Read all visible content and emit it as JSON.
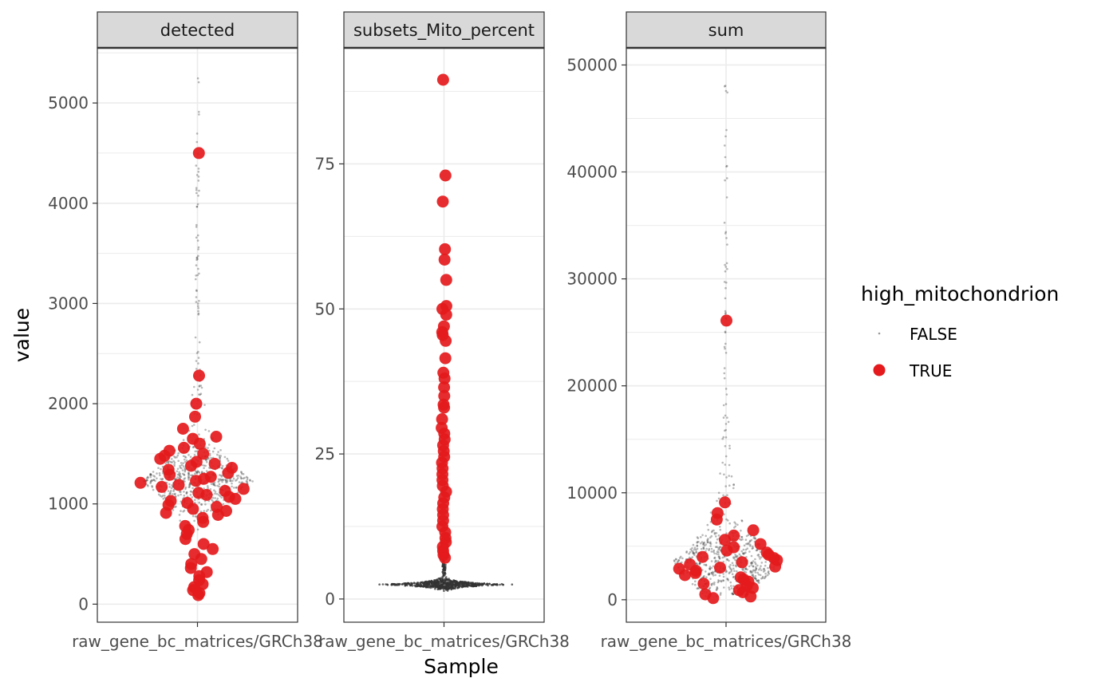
{
  "colors": {
    "true_point": "#e41a1c",
    "false_point": "#333333",
    "strip_fill": "#d9d9d9",
    "grid": "#ebebeb",
    "panel_border": "#333333"
  },
  "chart_data": {
    "type": "scatter",
    "subtype": "beeswarm",
    "xlabel": "Sample",
    "ylabel": "value",
    "legend": {
      "title": "high_mitochondrion",
      "placement": "right",
      "entries": [
        {
          "label": "FALSE",
          "color": "#333333",
          "size": "tiny"
        },
        {
          "label": "TRUE",
          "color": "#e41a1c",
          "size": "large"
        }
      ]
    },
    "grid": true,
    "facets": [
      {
        "title": "detected",
        "category": "raw_gene_bc_matrices/GRCh38",
        "ylim": [
          -180,
          5550
        ],
        "yticks": [
          "0",
          "1000",
          "2000",
          "3000",
          "4000",
          "5000"
        ],
        "ytick_values": [
          0,
          1000,
          2000,
          3000,
          4000,
          5000
        ],
        "false_range": [
          600,
          5250
        ],
        "false_body_center": 1230,
        "true_values": [
          4500,
          2280,
          2000,
          1870,
          1750,
          1670,
          1650,
          1600,
          1560,
          1530,
          1500,
          1480,
          1450,
          1420,
          1400,
          1380,
          1360,
          1340,
          1310,
          1290,
          1270,
          1250,
          1230,
          1210,
          1190,
          1170,
          1150,
          1130,
          1110,
          1090,
          1070,
          1050,
          1030,
          1010,
          990,
          970,
          950,
          930,
          910,
          890,
          860,
          820,
          780,
          740,
          700,
          650,
          600,
          550,
          500,
          450,
          400,
          360,
          320,
          280,
          240,
          200,
          170,
          140,
          110,
          90
        ]
      },
      {
        "title": "subsets_Mito_percent",
        "category": "raw_gene_bc_matrices/GRCh38",
        "ylim": [
          -4,
          95
        ],
        "yticks": [
          "0",
          "25",
          "50",
          "75"
        ],
        "ytick_values": [
          0,
          25,
          50,
          75
        ],
        "false_range": [
          0.5,
          7
        ],
        "false_body_center": 2.5,
        "true_values": [
          89.5,
          73,
          68.5,
          60.3,
          58.5,
          55,
          50.5,
          50,
          49,
          47,
          46,
          45.5,
          44.5,
          41.5,
          39,
          38,
          36.5,
          35,
          33.5,
          33,
          31,
          29.5,
          28.5,
          27.5,
          26.5,
          25.5,
          24.5,
          23.5,
          22.5,
          21.5,
          20.5,
          19.5,
          18.5,
          17.5,
          16.5,
          15.5,
          14.5,
          13.5,
          12.5,
          11.5,
          10.5,
          9.8,
          9,
          8.3,
          7.6,
          7.1
        ]
      },
      {
        "title": "sum",
        "category": "raw_gene_bc_matrices/GRCh38",
        "ylim": [
          -2100,
          51600
        ],
        "yticks": [
          "0",
          "10000",
          "20000",
          "30000",
          "40000",
          "50000"
        ],
        "ytick_values": [
          0,
          10000,
          20000,
          30000,
          40000,
          50000
        ],
        "false_range": [
          300,
          48500
        ],
        "false_body_center": 3400,
        "true_values": [
          26100,
          9100,
          8100,
          7500,
          6500,
          6000,
          5600,
          5200,
          4900,
          4600,
          4400,
          4200,
          4000,
          3900,
          3700,
          3500,
          3300,
          3100,
          3000,
          2900,
          2700,
          2500,
          2300,
          2100,
          1900,
          1700,
          1500,
          1300,
          1100,
          900,
          700,
          500,
          300,
          150
        ]
      }
    ]
  }
}
